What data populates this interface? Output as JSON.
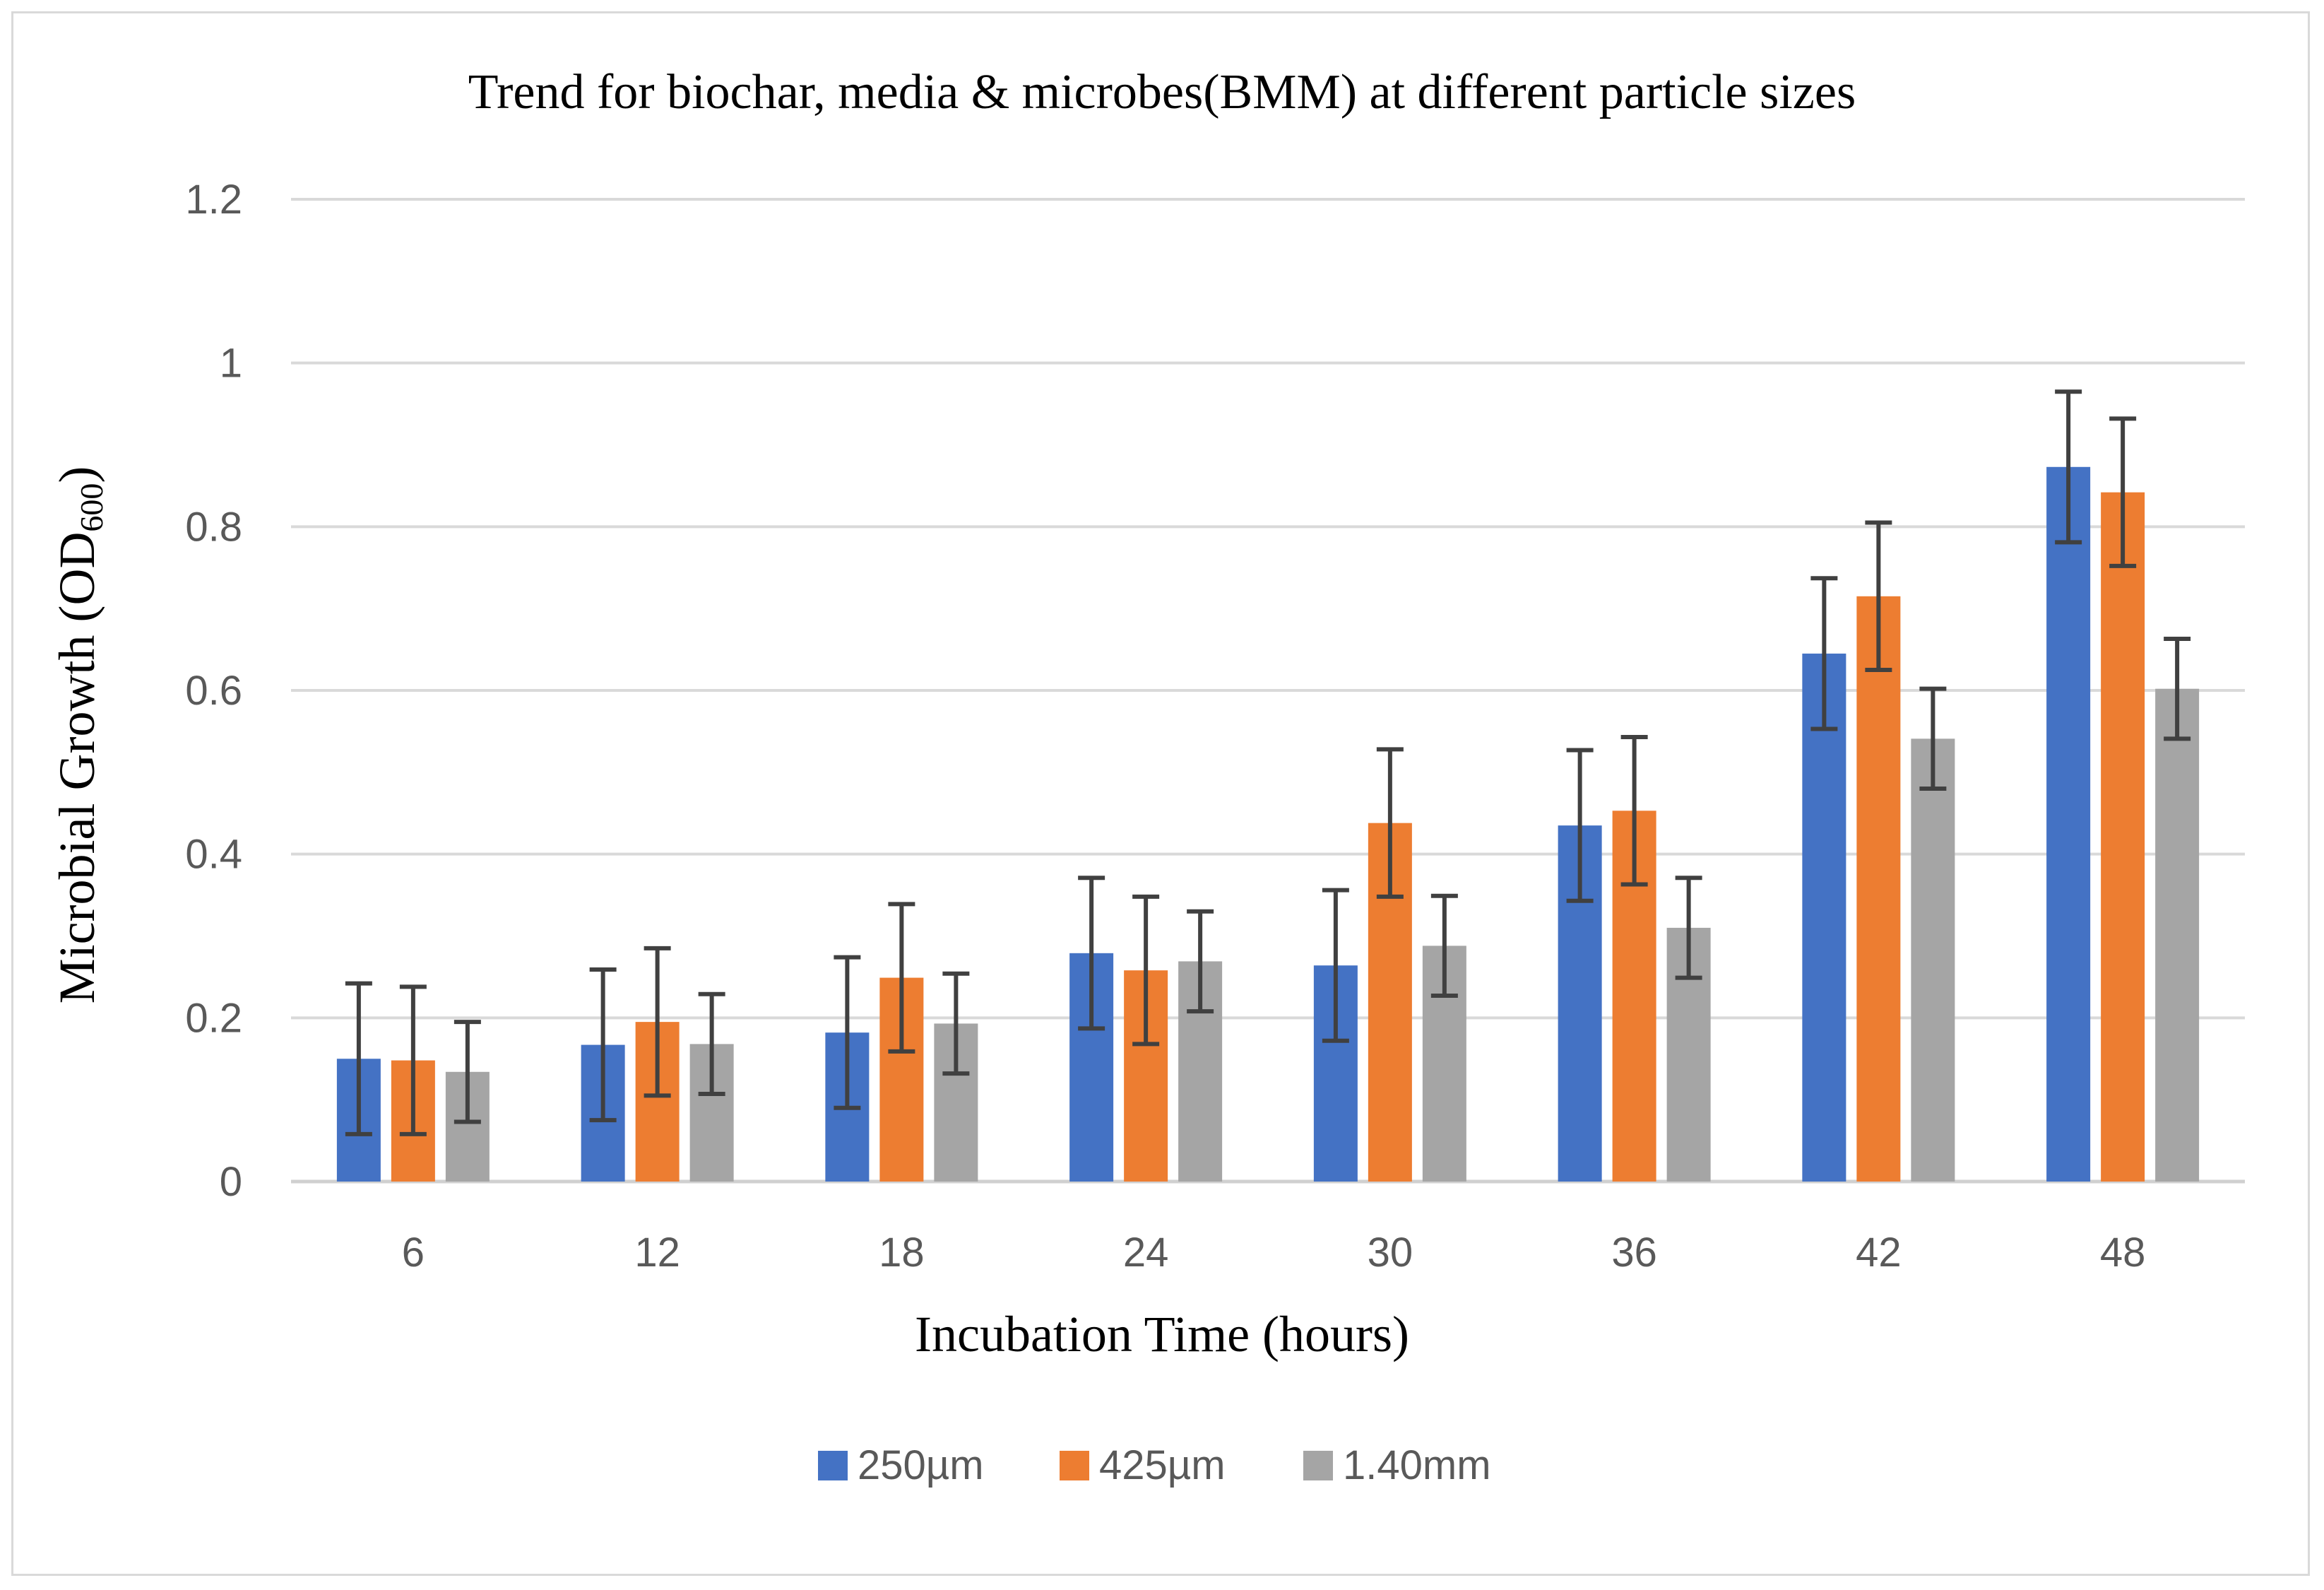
{
  "chart_data": {
    "type": "bar",
    "title": "Trend for biochar, media & microbes(BMM) at different particle sizes",
    "xlabel": "Incubation Time (hours)",
    "ylabel": "Microbial Growth (OD600)",
    "ylabel_main": "Microbial Growth (OD",
    "ylabel_subscript": "600",
    "ylabel_close": ")",
    "categories": [
      "6",
      "12",
      "18",
      "24",
      "30",
      "36",
      "42",
      "48"
    ],
    "ylim": [
      0,
      1.2
    ],
    "yticks": [
      0,
      0.2,
      0.4,
      0.6,
      0.8,
      1,
      1.2
    ],
    "ytick_labels": [
      "0",
      "0.2",
      "0.4",
      "0.6",
      "0.8",
      "1",
      "1.2"
    ],
    "grid": true,
    "legend_position": "bottom-center",
    "series": [
      {
        "name": "250µm",
        "color": "#4472c4",
        "values": [
          0.15,
          0.167,
          0.182,
          0.279,
          0.264,
          0.435,
          0.645,
          0.873
        ],
        "errors": [
          0.092,
          0.092,
          0.092,
          0.092,
          0.092,
          0.092,
          0.092,
          0.092
        ]
      },
      {
        "name": "425µm",
        "color": "#ed7d31",
        "values": [
          0.148,
          0.195,
          0.249,
          0.258,
          0.438,
          0.453,
          0.715,
          0.842
        ],
        "errors": [
          0.09,
          0.09,
          0.09,
          0.09,
          0.09,
          0.09,
          0.09,
          0.09
        ]
      },
      {
        "name": "1.40mm",
        "color": "#a5a5a5",
        "values": [
          0.134,
          0.168,
          0.193,
          0.269,
          0.288,
          0.31,
          0.541,
          0.602
        ],
        "errors": [
          0.061,
          0.061,
          0.061,
          0.061,
          0.061,
          0.061,
          0.061,
          0.061
        ]
      }
    ]
  }
}
